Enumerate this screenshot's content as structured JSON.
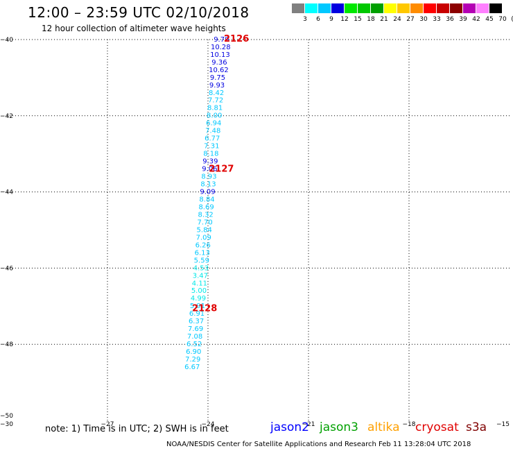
{
  "title": "12:00 – 23:59 UTC 02/10/2018",
  "subtitle": "12 hour collection of altimeter wave heights",
  "colorbar": {
    "colors": [
      "#808080",
      "#00ffff",
      "#00c8ff",
      "#0000e0",
      "#00e800",
      "#00c800",
      "#00a000",
      "#ffff00",
      "#ffc800",
      "#ff8c00",
      "#ff0000",
      "#c80000",
      "#8c0000",
      "#b400b4",
      "#ff80ff",
      "#000000"
    ],
    "labels": [
      "3",
      "6",
      "9",
      "12",
      "15",
      "18",
      "21",
      "24",
      "27",
      "30",
      "33",
      "36",
      "39",
      "42",
      "45",
      "70",
      "(ft)"
    ]
  },
  "footnote": "note:  1) Time is in UTC;  2) SWH is in feet",
  "credit": "NOAA/NESDIS Center for Satellite Applications and Research    Feb 11 13:28:04 UTC 2018",
  "legend": [
    {
      "name": "jason2",
      "color": "#0000ff"
    },
    {
      "name": "jason3",
      "color": "#00a000"
    },
    {
      "name": "altika",
      "color": "#ffa000"
    },
    {
      "name": "cryosat",
      "color": "#e00000"
    },
    {
      "name": "s3a",
      "color": "#800000"
    }
  ],
  "chart_data": {
    "type": "scatter",
    "xlim": [
      -30,
      -15
    ],
    "ylim": [
      -50,
      -40
    ],
    "xticks": [
      -30,
      -27,
      -24,
      -21,
      -18,
      -15
    ],
    "yticks": [
      -40,
      -42,
      -44,
      -46,
      -48,
      -50
    ],
    "xtick_labels": [
      "−30",
      "−27",
      "−24",
      "−21",
      "−18",
      "−15"
    ],
    "ytick_labels": [
      "−40",
      "−42",
      "−44",
      "−46",
      "−48",
      "−50"
    ],
    "grid": true,
    "pass_color": "#e00000",
    "passes": [
      {
        "label": "2126",
        "x": -23.15,
        "y": -39.98
      },
      {
        "label": "2127",
        "x": -23.6,
        "y": -43.4
      },
      {
        "label": "2128",
        "x": -24.1,
        "y": -47.06
      }
    ],
    "points": [
      {
        "x": -23.6,
        "y": -39.98,
        "v": "9.79",
        "c": "#0000e0"
      },
      {
        "x": -23.62,
        "y": -40.18,
        "v": "10.28",
        "c": "#0000e0"
      },
      {
        "x": -23.64,
        "y": -40.38,
        "v": "10.13",
        "c": "#0000e0"
      },
      {
        "x": -23.66,
        "y": -40.58,
        "v": "9.36",
        "c": "#0000e0"
      },
      {
        "x": -23.68,
        "y": -40.78,
        "v": "10.62",
        "c": "#0000e0"
      },
      {
        "x": -23.71,
        "y": -40.98,
        "v": "9.75",
        "c": "#0000e0"
      },
      {
        "x": -23.73,
        "y": -41.18,
        "v": "9.93",
        "c": "#0000e0"
      },
      {
        "x": -23.75,
        "y": -41.38,
        "v": "8.42",
        "c": "#00c8ff"
      },
      {
        "x": -23.77,
        "y": -41.58,
        "v": "7.72",
        "c": "#00c8ff"
      },
      {
        "x": -23.79,
        "y": -41.78,
        "v": "8.81",
        "c": "#00c8ff"
      },
      {
        "x": -23.81,
        "y": -41.98,
        "v": "8.00",
        "c": "#00c8ff"
      },
      {
        "x": -23.83,
        "y": -42.18,
        "v": "6.94",
        "c": "#00c8ff"
      },
      {
        "x": -23.85,
        "y": -42.38,
        "v": "7.48",
        "c": "#00c8ff"
      },
      {
        "x": -23.87,
        "y": -42.58,
        "v": "6.77",
        "c": "#00c8ff"
      },
      {
        "x": -23.89,
        "y": -42.78,
        "v": "7.31",
        "c": "#00c8ff"
      },
      {
        "x": -23.91,
        "y": -42.98,
        "v": "8.18",
        "c": "#00c8ff"
      },
      {
        "x": -23.93,
        "y": -43.18,
        "v": "9.39",
        "c": "#0000e0"
      },
      {
        "x": -23.95,
        "y": -43.38,
        "v": "9.06",
        "c": "#0000e0"
      },
      {
        "x": -23.97,
        "y": -43.58,
        "v": "8.93",
        "c": "#00c8ff"
      },
      {
        "x": -23.99,
        "y": -43.78,
        "v": "8.13",
        "c": "#00c8ff"
      },
      {
        "x": -24.01,
        "y": -43.98,
        "v": "9.09",
        "c": "#0000e0"
      },
      {
        "x": -24.03,
        "y": -44.18,
        "v": "8.84",
        "c": "#00c8ff"
      },
      {
        "x": -24.05,
        "y": -44.38,
        "v": "8.69",
        "c": "#00c8ff"
      },
      {
        "x": -24.07,
        "y": -44.58,
        "v": "8.32",
        "c": "#00c8ff"
      },
      {
        "x": -24.09,
        "y": -44.78,
        "v": "7.70",
        "c": "#00c8ff"
      },
      {
        "x": -24.11,
        "y": -44.98,
        "v": "5.84",
        "c": "#00c8ff"
      },
      {
        "x": -24.13,
        "y": -45.18,
        "v": "7.09",
        "c": "#00c8ff"
      },
      {
        "x": -24.15,
        "y": -45.38,
        "v": "6.26",
        "c": "#00c8ff"
      },
      {
        "x": -24.17,
        "y": -45.58,
        "v": "6.13",
        "c": "#00c8ff"
      },
      {
        "x": -24.19,
        "y": -45.78,
        "v": "5.59",
        "c": "#00c8ff"
      },
      {
        "x": -24.21,
        "y": -45.98,
        "v": "4.53",
        "c": "#00e8e8"
      },
      {
        "x": -24.23,
        "y": -46.18,
        "v": "3.47",
        "c": "#00e8e8"
      },
      {
        "x": -24.25,
        "y": -46.38,
        "v": "4.11",
        "c": "#00e8e8"
      },
      {
        "x": -24.27,
        "y": -46.58,
        "v": "5.00",
        "c": "#00e8e8"
      },
      {
        "x": -24.29,
        "y": -46.78,
        "v": "4.99",
        "c": "#00e8e8"
      },
      {
        "x": -24.31,
        "y": -46.98,
        "v": "5.91",
        "c": "#00c8ff"
      },
      {
        "x": -24.33,
        "y": -47.18,
        "v": "6.91",
        "c": "#00c8ff"
      },
      {
        "x": -24.35,
        "y": -47.38,
        "v": "6.37",
        "c": "#00c8ff"
      },
      {
        "x": -24.37,
        "y": -47.58,
        "v": "7.69",
        "c": "#00c8ff"
      },
      {
        "x": -24.39,
        "y": -47.78,
        "v": "7.08",
        "c": "#00c8ff"
      },
      {
        "x": -24.41,
        "y": -47.98,
        "v": "6.52",
        "c": "#00c8ff"
      },
      {
        "x": -24.43,
        "y": -48.18,
        "v": "6.90",
        "c": "#00c8ff"
      },
      {
        "x": -24.45,
        "y": -48.38,
        "v": "7.29",
        "c": "#00c8ff"
      },
      {
        "x": -24.47,
        "y": -48.58,
        "v": "6.67",
        "c": "#00c8ff"
      }
    ]
  }
}
